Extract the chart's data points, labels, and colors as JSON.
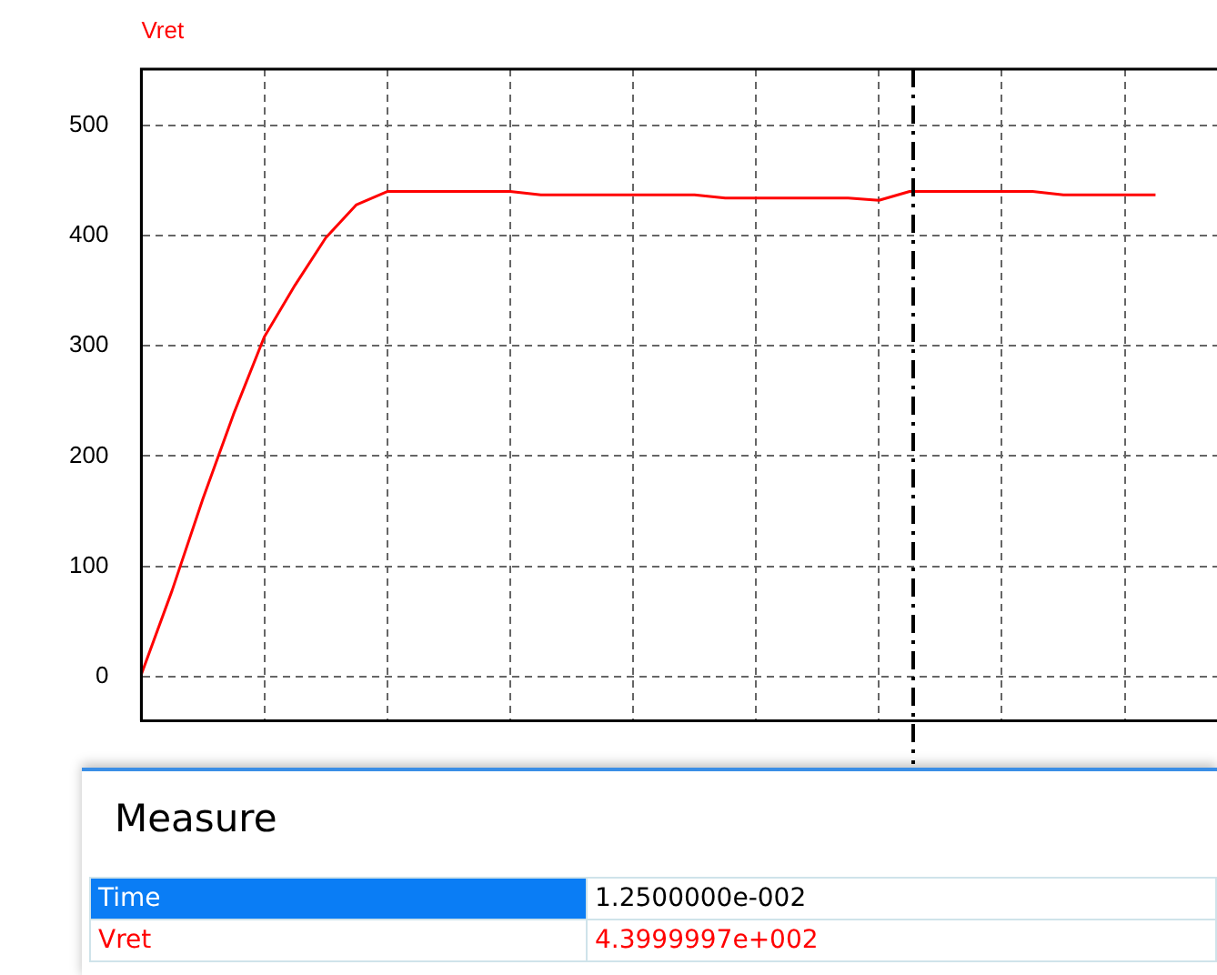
{
  "chart_data": {
    "type": "line",
    "categories": [
      null,
      null,
      null,
      null,
      null,
      null,
      null,
      null,
      null,
      null,
      null,
      null,
      null,
      null,
      null,
      null,
      null,
      null,
      null,
      null,
      null,
      null,
      null,
      null,
      null,
      null,
      null,
      null,
      null,
      null,
      null,
      null,
      null,
      null,
      null,
      null
    ],
    "series": [
      {
        "name": "Vret",
        "color": "#ff0000",
        "values": [
          2,
          78,
          161,
          238,
          308,
          355,
          398,
          428,
          440,
          440,
          440,
          440,
          440,
          437,
          437,
          437,
          437,
          437,
          437,
          434,
          434,
          434,
          434,
          434,
          432,
          440,
          440,
          440,
          440,
          440,
          437,
          437,
          437,
          437,
          null,
          null
        ]
      }
    ],
    "ylim": [
      -40,
      551
    ],
    "yticks": [
      0,
      100,
      200,
      300,
      400,
      500
    ],
    "tick_labels": "y",
    "grid": true,
    "marker": "none",
    "line_style": "solid",
    "annotations": [
      "Measure",
      "Time",
      "1.2500000e-002",
      "Vret",
      "4.3999997e+002"
    ]
  }
}
